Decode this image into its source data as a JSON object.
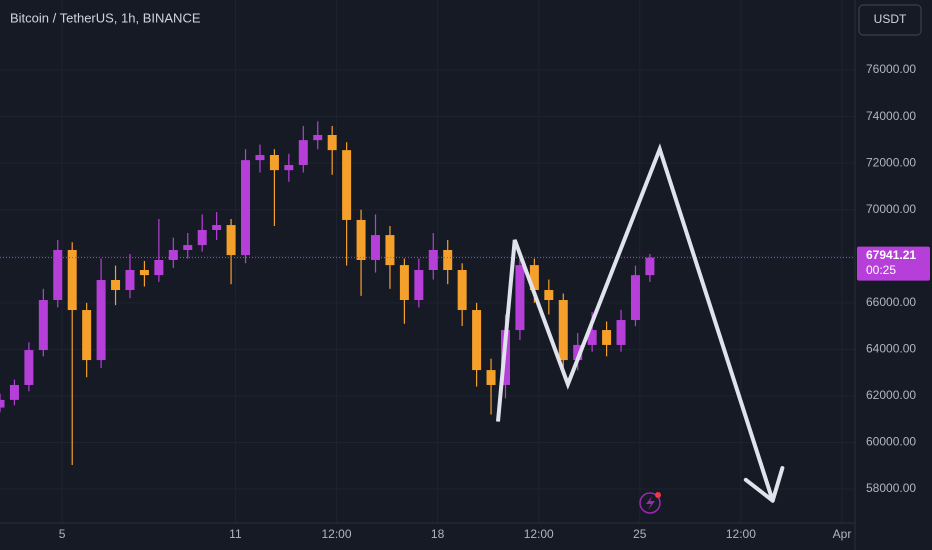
{
  "chart_data": {
    "type": "candlestick",
    "title": "Bitcoin / TetherUS, 1h, BINANCE",
    "currency": "USDT",
    "countdown": "00:25",
    "x": [
      2.85,
      3.35,
      3.85,
      4.35,
      4.85,
      5.35,
      5.85,
      6.35,
      6.85,
      7.35,
      7.85,
      8.35,
      8.85,
      9.35,
      9.85,
      10.35,
      10.85,
      11.35,
      11.85,
      12.35,
      12.85,
      13.35,
      13.85,
      14.35,
      14.85,
      15.35,
      15.85,
      16.35,
      16.85,
      17.35,
      17.85,
      18.35,
      18.85,
      19.35,
      19.85,
      20.35,
      20.85,
      21.35,
      21.85,
      22.35,
      22.85,
      23.35,
      23.85,
      24.35,
      24.85,
      25.35
    ],
    "open": [
      61500,
      61830,
      62470,
      63970,
      66120,
      68270,
      65690,
      63540,
      66980,
      66550,
      67410,
      67190,
      67840,
      68270,
      68480,
      69130,
      69340,
      68050,
      72130,
      72350,
      71700,
      71920,
      72990,
      73210,
      72560,
      69560,
      67840,
      68910,
      67620,
      66120,
      67410,
      68270,
      67410,
      65690,
      63110,
      62470,
      64830,
      67620,
      66550,
      66120,
      63540,
      64190,
      64830,
      64190,
      65260,
      67190
    ],
    "high": [
      62100,
      62700,
      64300,
      66600,
      68700,
      68600,
      66000,
      67900,
      67600,
      68100,
      67800,
      69600,
      68800,
      69000,
      69800,
      69900,
      69600,
      72600,
      72800,
      72600,
      72400,
      73600,
      73800,
      73600,
      72900,
      70000,
      69800,
      69300,
      67900,
      67900,
      69000,
      68700,
      67700,
      66000,
      63600,
      65500,
      68100,
      67900,
      67000,
      66400,
      64700,
      65600,
      65200,
      65700,
      67600,
      68100
    ],
    "low": [
      61300,
      61600,
      62200,
      63700,
      65800,
      59030,
      62800,
      63200,
      65900,
      66200,
      66700,
      66900,
      67500,
      67900,
      68200,
      68700,
      66800,
      67700,
      71600,
      69300,
      71200,
      71600,
      72600,
      71500,
      67600,
      66300,
      67300,
      66600,
      65100,
      65800,
      67000,
      66800,
      65000,
      62400,
      61200,
      61900,
      64400,
      66000,
      65500,
      62900,
      63100,
      63900,
      63700,
      63900,
      65000,
      66900
    ],
    "close": [
      61830,
      62470,
      63970,
      66120,
      68270,
      65690,
      63540,
      66980,
      66550,
      67410,
      67190,
      67840,
      68270,
      68480,
      69130,
      69340,
      68050,
      72130,
      72350,
      71700,
      71920,
      72990,
      73210,
      72560,
      69560,
      67840,
      68910,
      67620,
      66120,
      67410,
      68270,
      67410,
      65690,
      63110,
      62470,
      64830,
      67620,
      66550,
      66120,
      63540,
      64190,
      64830,
      64190,
      65260,
      67190,
      67941.21
    ],
    "up_color": "#b73fd9",
    "down_color": "#f5a02a",
    "drawing": {
      "x": [
        20.09,
        20.67,
        22.51,
        25.69,
        29.6
      ],
      "price": [
        60900,
        68700,
        62500,
        72600,
        57500
      ],
      "color": "#e0e3eb"
    },
    "xlim": [
      2.85,
      32.45
    ],
    "ylim": [
      56540,
      79010
    ],
    "xticks": [
      5,
      11,
      {
        "value": 14.5,
        "label": "12:00"
      },
      18,
      {
        "value": 21.5,
        "label": "12:00"
      },
      25,
      {
        "value": 28.5,
        "label": "12:00"
      },
      {
        "value": 32,
        "label": "Apr"
      }
    ],
    "yticks": [
      {
        "value": 58000,
        "label": "58000.00"
      },
      {
        "value": 60000,
        "label": "60000.00"
      },
      {
        "value": 62000,
        "label": "62000.00"
      },
      {
        "value": 64000,
        "label": "64000.00"
      },
      {
        "value": 66000,
        "label": "66000.00"
      },
      {
        "value": 68000,
        "label": "68000.00"
      },
      {
        "value": 70000,
        "label": "70000.00"
      },
      {
        "value": 72000,
        "label": "72000.00"
      },
      {
        "value": 74000,
        "label": "74000.00"
      },
      {
        "value": 76000,
        "label": "76000.00"
      }
    ],
    "grid": true
  }
}
